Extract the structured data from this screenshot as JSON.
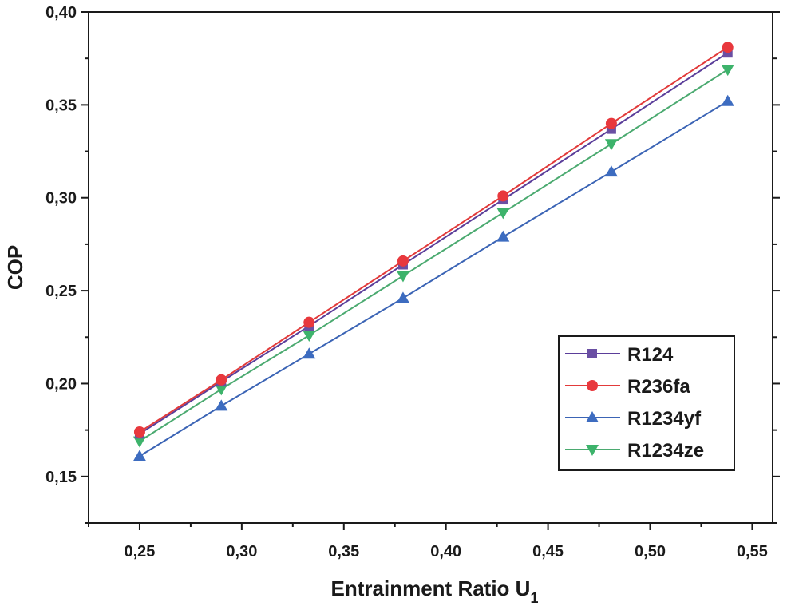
{
  "chart_data": {
    "type": "line",
    "title": "",
    "xlabel": "Entrainment Ratio U",
    "xlabel_subscript": "1",
    "ylabel": "COP",
    "xlim": [
      0.225,
      0.56
    ],
    "ylim": [
      0.125,
      0.4
    ],
    "xticks": [
      0.25,
      0.3,
      0.35,
      0.4,
      0.45,
      0.5,
      0.55
    ],
    "xtick_labels": [
      "0,25",
      "0,30",
      "0,35",
      "0,40",
      "0,45",
      "0,50",
      "0,55"
    ],
    "yticks": [
      0.15,
      0.2,
      0.25,
      0.3,
      0.35,
      0.4
    ],
    "ytick_labels": [
      "0,15",
      "0,20",
      "0,25",
      "0,30",
      "0,35",
      "0,40"
    ],
    "grid": false,
    "legend_position": "bottom-right",
    "x": [
      0.25,
      0.29,
      0.333,
      0.379,
      0.428,
      0.481,
      0.538
    ],
    "series": [
      {
        "name": "R124",
        "marker": "square",
        "color": "#6A4FA3",
        "line_color": "#5B3E9A",
        "values": [
          0.173,
          0.201,
          0.231,
          0.264,
          0.299,
          0.337,
          0.378
        ]
      },
      {
        "name": "R236fa",
        "marker": "circle",
        "color": "#E8383D",
        "line_color": "#E23A3A",
        "values": [
          0.174,
          0.202,
          0.233,
          0.266,
          0.301,
          0.34,
          0.381
        ]
      },
      {
        "name": "R1234yf",
        "marker": "triangle-up",
        "color": "#3D6CC0",
        "line_color": "#3B64B5",
        "values": [
          0.161,
          0.188,
          0.216,
          0.246,
          0.279,
          0.314,
          0.352
        ]
      },
      {
        "name": "R1234ze",
        "marker": "triangle-down",
        "color": "#3DB36B",
        "line_color": "#4BAA70",
        "values": [
          0.169,
          0.197,
          0.226,
          0.258,
          0.292,
          0.329,
          0.369
        ]
      }
    ]
  }
}
